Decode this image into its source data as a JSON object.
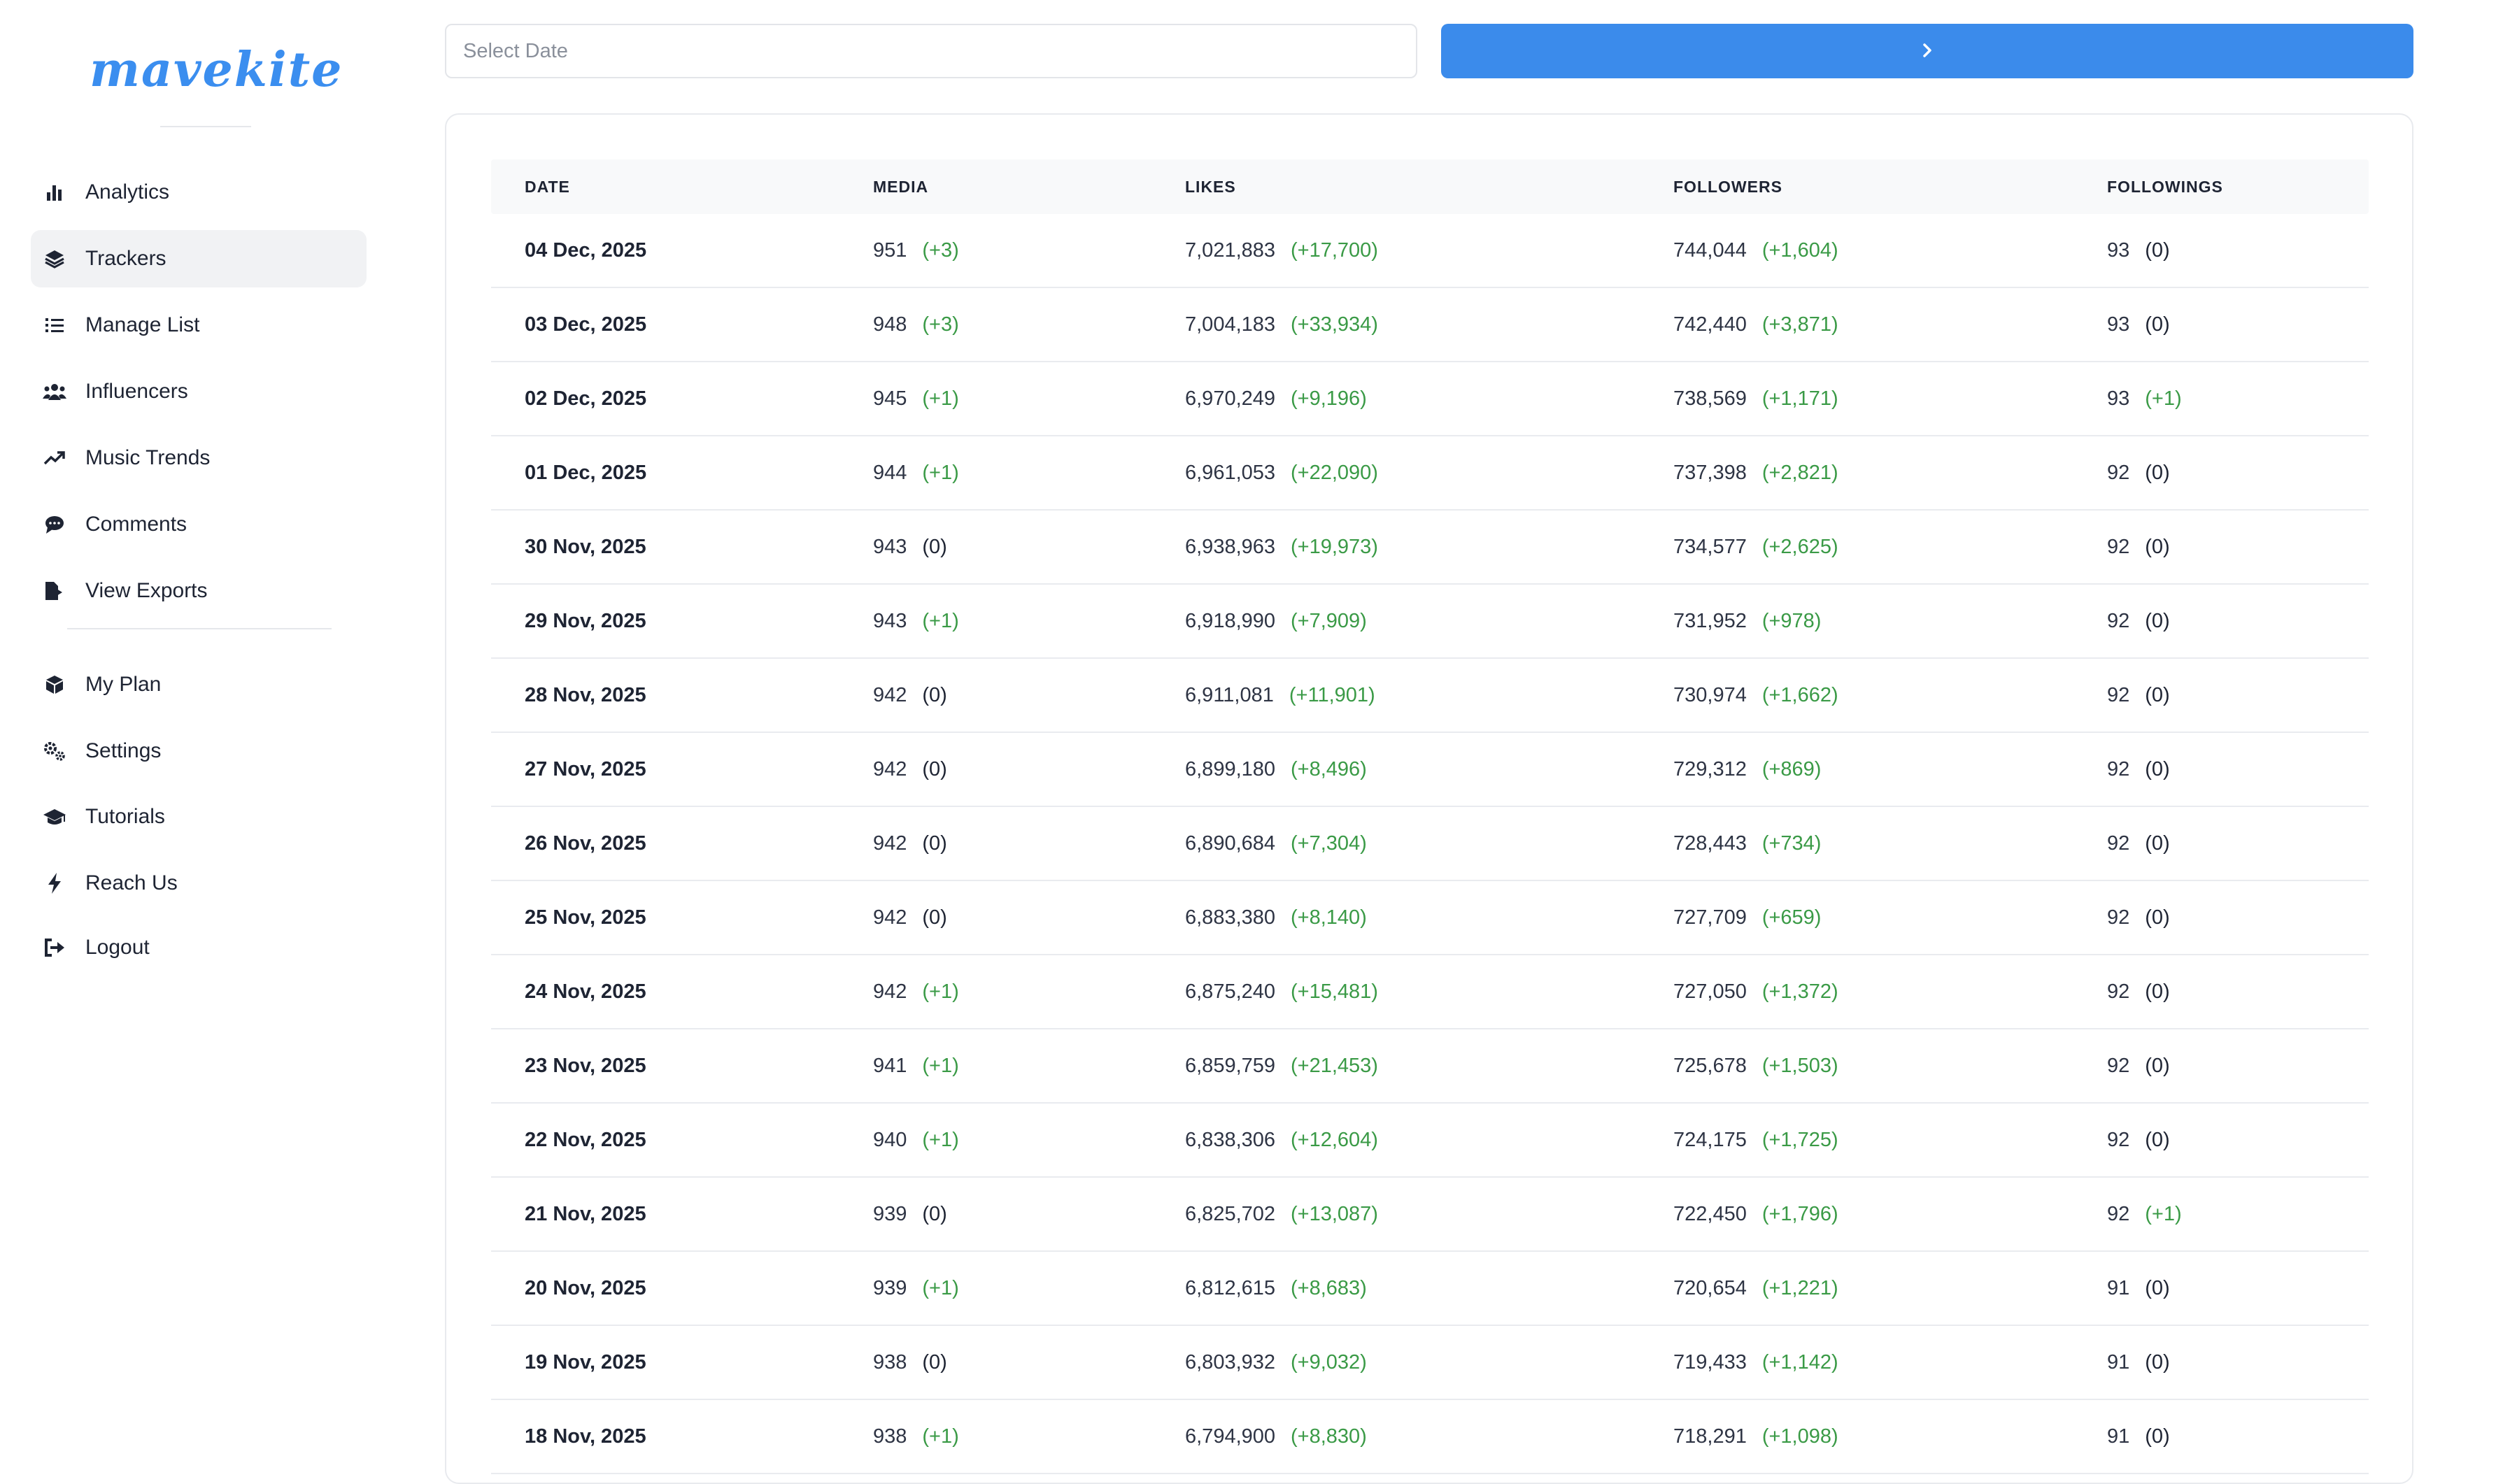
{
  "brand": {
    "logo_text": "mavekite",
    "accent": "#3b8beb"
  },
  "sidebar": {
    "items": [
      {
        "label": "Analytics",
        "icon": "bar-chart-icon",
        "active": false
      },
      {
        "label": "Trackers",
        "icon": "layers-icon",
        "active": true
      },
      {
        "label": "Manage List",
        "icon": "list-icon",
        "active": false
      },
      {
        "label": "Influencers",
        "icon": "users-icon",
        "active": false
      },
      {
        "label": "Music Trends",
        "icon": "trending-up-icon",
        "active": false
      },
      {
        "label": "Comments",
        "icon": "comment-icon",
        "active": false
      },
      {
        "label": "View Exports",
        "icon": "file-export-icon",
        "active": false
      }
    ],
    "secondary_items": [
      {
        "label": "My Plan",
        "icon": "box-icon"
      },
      {
        "label": "Settings",
        "icon": "gears-icon"
      },
      {
        "label": "Tutorials",
        "icon": "graduation-cap-icon"
      },
      {
        "label": "Reach Us",
        "icon": "bolt-icon"
      },
      {
        "label": "Logout",
        "icon": "logout-icon"
      }
    ]
  },
  "toolbar": {
    "date_placeholder": "Select Date",
    "date_value": "",
    "go_icon": "chevron-right-icon"
  },
  "table": {
    "columns": [
      "DATE",
      "MEDIA",
      "LIKES",
      "FOLLOWERS",
      "FOLLOWINGS"
    ],
    "rows": [
      {
        "date": "04 Dec, 2025",
        "media": "951",
        "media_delta": "(+3)",
        "likes": "7,021,883",
        "likes_delta": "(+17,700)",
        "followers": "744,044",
        "followers_delta": "(+1,604)",
        "followings": "93",
        "followings_delta": "(0)"
      },
      {
        "date": "03 Dec, 2025",
        "media": "948",
        "media_delta": "(+3)",
        "likes": "7,004,183",
        "likes_delta": "(+33,934)",
        "followers": "742,440",
        "followers_delta": "(+3,871)",
        "followings": "93",
        "followings_delta": "(0)"
      },
      {
        "date": "02 Dec, 2025",
        "media": "945",
        "media_delta": "(+1)",
        "likes": "6,970,249",
        "likes_delta": "(+9,196)",
        "followers": "738,569",
        "followers_delta": "(+1,171)",
        "followings": "93",
        "followings_delta": "(+1)"
      },
      {
        "date": "01 Dec, 2025",
        "media": "944",
        "media_delta": "(+1)",
        "likes": "6,961,053",
        "likes_delta": "(+22,090)",
        "followers": "737,398",
        "followers_delta": "(+2,821)",
        "followings": "92",
        "followings_delta": "(0)"
      },
      {
        "date": "30 Nov, 2025",
        "media": "943",
        "media_delta": "(0)",
        "likes": "6,938,963",
        "likes_delta": "(+19,973)",
        "followers": "734,577",
        "followers_delta": "(+2,625)",
        "followings": "92",
        "followings_delta": "(0)"
      },
      {
        "date": "29 Nov, 2025",
        "media": "943",
        "media_delta": "(+1)",
        "likes": "6,918,990",
        "likes_delta": "(+7,909)",
        "followers": "731,952",
        "followers_delta": "(+978)",
        "followings": "92",
        "followings_delta": "(0)"
      },
      {
        "date": "28 Nov, 2025",
        "media": "942",
        "media_delta": "(0)",
        "likes": "6,911,081",
        "likes_delta": "(+11,901)",
        "followers": "730,974",
        "followers_delta": "(+1,662)",
        "followings": "92",
        "followings_delta": "(0)"
      },
      {
        "date": "27 Nov, 2025",
        "media": "942",
        "media_delta": "(0)",
        "likes": "6,899,180",
        "likes_delta": "(+8,496)",
        "followers": "729,312",
        "followers_delta": "(+869)",
        "followings": "92",
        "followings_delta": "(0)"
      },
      {
        "date": "26 Nov, 2025",
        "media": "942",
        "media_delta": "(0)",
        "likes": "6,890,684",
        "likes_delta": "(+7,304)",
        "followers": "728,443",
        "followers_delta": "(+734)",
        "followings": "92",
        "followings_delta": "(0)"
      },
      {
        "date": "25 Nov, 2025",
        "media": "942",
        "media_delta": "(0)",
        "likes": "6,883,380",
        "likes_delta": "(+8,140)",
        "followers": "727,709",
        "followers_delta": "(+659)",
        "followings": "92",
        "followings_delta": "(0)"
      },
      {
        "date": "24 Nov, 2025",
        "media": "942",
        "media_delta": "(+1)",
        "likes": "6,875,240",
        "likes_delta": "(+15,481)",
        "followers": "727,050",
        "followers_delta": "(+1,372)",
        "followings": "92",
        "followings_delta": "(0)"
      },
      {
        "date": "23 Nov, 2025",
        "media": "941",
        "media_delta": "(+1)",
        "likes": "6,859,759",
        "likes_delta": "(+21,453)",
        "followers": "725,678",
        "followers_delta": "(+1,503)",
        "followings": "92",
        "followings_delta": "(0)"
      },
      {
        "date": "22 Nov, 2025",
        "media": "940",
        "media_delta": "(+1)",
        "likes": "6,838,306",
        "likes_delta": "(+12,604)",
        "followers": "724,175",
        "followers_delta": "(+1,725)",
        "followings": "92",
        "followings_delta": "(0)"
      },
      {
        "date": "21 Nov, 2025",
        "media": "939",
        "media_delta": "(0)",
        "likes": "6,825,702",
        "likes_delta": "(+13,087)",
        "followers": "722,450",
        "followers_delta": "(+1,796)",
        "followings": "92",
        "followings_delta": "(+1)"
      },
      {
        "date": "20 Nov, 2025",
        "media": "939",
        "media_delta": "(+1)",
        "likes": "6,812,615",
        "likes_delta": "(+8,683)",
        "followers": "720,654",
        "followers_delta": "(+1,221)",
        "followings": "91",
        "followings_delta": "(0)"
      },
      {
        "date": "19 Nov, 2025",
        "media": "938",
        "media_delta": "(0)",
        "likes": "6,803,932",
        "likes_delta": "(+9,032)",
        "followers": "719,433",
        "followers_delta": "(+1,142)",
        "followings": "91",
        "followings_delta": "(0)"
      },
      {
        "date": "18 Nov, 2025",
        "media": "938",
        "media_delta": "(+1)",
        "likes": "6,794,900",
        "likes_delta": "(+8,830)",
        "followers": "718,291",
        "followers_delta": "(+1,098)",
        "followings": "91",
        "followings_delta": "(0)"
      }
    ]
  },
  "colors": {
    "positive": "#3a9a46",
    "neutral": "#1e2433",
    "active_bg": "#f1f2f4",
    "header_bg": "#f8f9fa"
  }
}
